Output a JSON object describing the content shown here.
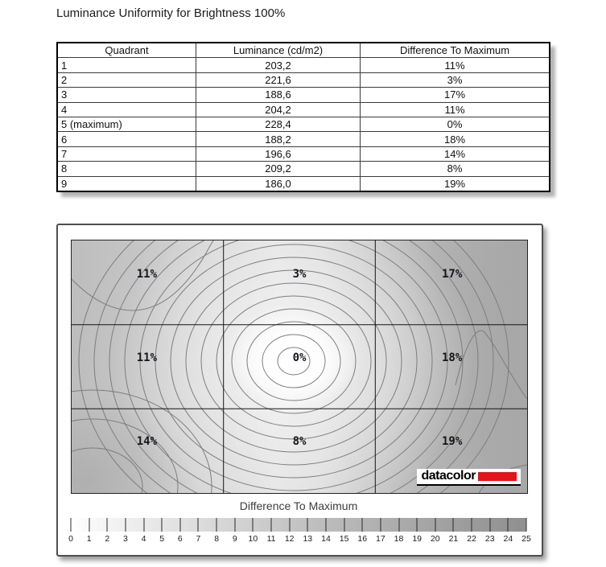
{
  "page": {
    "title": "Luminance Uniformity for Brightness 100%"
  },
  "table": {
    "headers": [
      "Quadrant",
      "Luminance (cd/m2)",
      "Difference To Maximum"
    ],
    "rows": [
      [
        "1",
        "203,2",
        "11%"
      ],
      [
        "2",
        "221,6",
        "3%"
      ],
      [
        "3",
        "188,6",
        "17%"
      ],
      [
        "4",
        "204,2",
        "11%"
      ],
      [
        "5 (maximum)",
        "228,4",
        "0%"
      ],
      [
        "6",
        "188,2",
        "18%"
      ],
      [
        "7",
        "196,6",
        "14%"
      ],
      [
        "8",
        "209,2",
        "8%"
      ],
      [
        "9",
        "186,0",
        "19%"
      ]
    ]
  },
  "chart_data": {
    "type": "heatmap",
    "title": "Luminance Uniformity for Brightness 100%",
    "grid": {
      "rows": 3,
      "cols": 3,
      "cell_labels": [
        [
          "11%",
          "3%",
          "17%"
        ],
        [
          "11%",
          "0%",
          "18%"
        ],
        [
          "14%",
          "8%",
          "19%"
        ]
      ],
      "cell_values_percent": [
        [
          11,
          3,
          17
        ],
        [
          11,
          0,
          18
        ],
        [
          14,
          8,
          19
        ]
      ]
    },
    "quadrant_luminance_cd_m2": [
      203.2,
      221.6,
      188.6,
      204.2,
      228.4,
      188.2,
      196.6,
      209.2,
      186.0
    ],
    "maximum_quadrant": "5 (maximum)",
    "colorbar": {
      "label": "Difference To Maximum",
      "min": 0,
      "max": 25,
      "ticks": [
        "0",
        "1",
        "2",
        "3",
        "4",
        "5",
        "6",
        "7",
        "8",
        "9",
        "10",
        "11",
        "12",
        "13",
        "14",
        "15",
        "16",
        "17",
        "18",
        "19",
        "20",
        "21",
        "22",
        "23",
        "24",
        "25"
      ],
      "start_color": "#ffffff",
      "end_color": "#8f8f8f"
    },
    "branding": {
      "text": "datacolor",
      "accent_color": "#e2141c"
    }
  }
}
